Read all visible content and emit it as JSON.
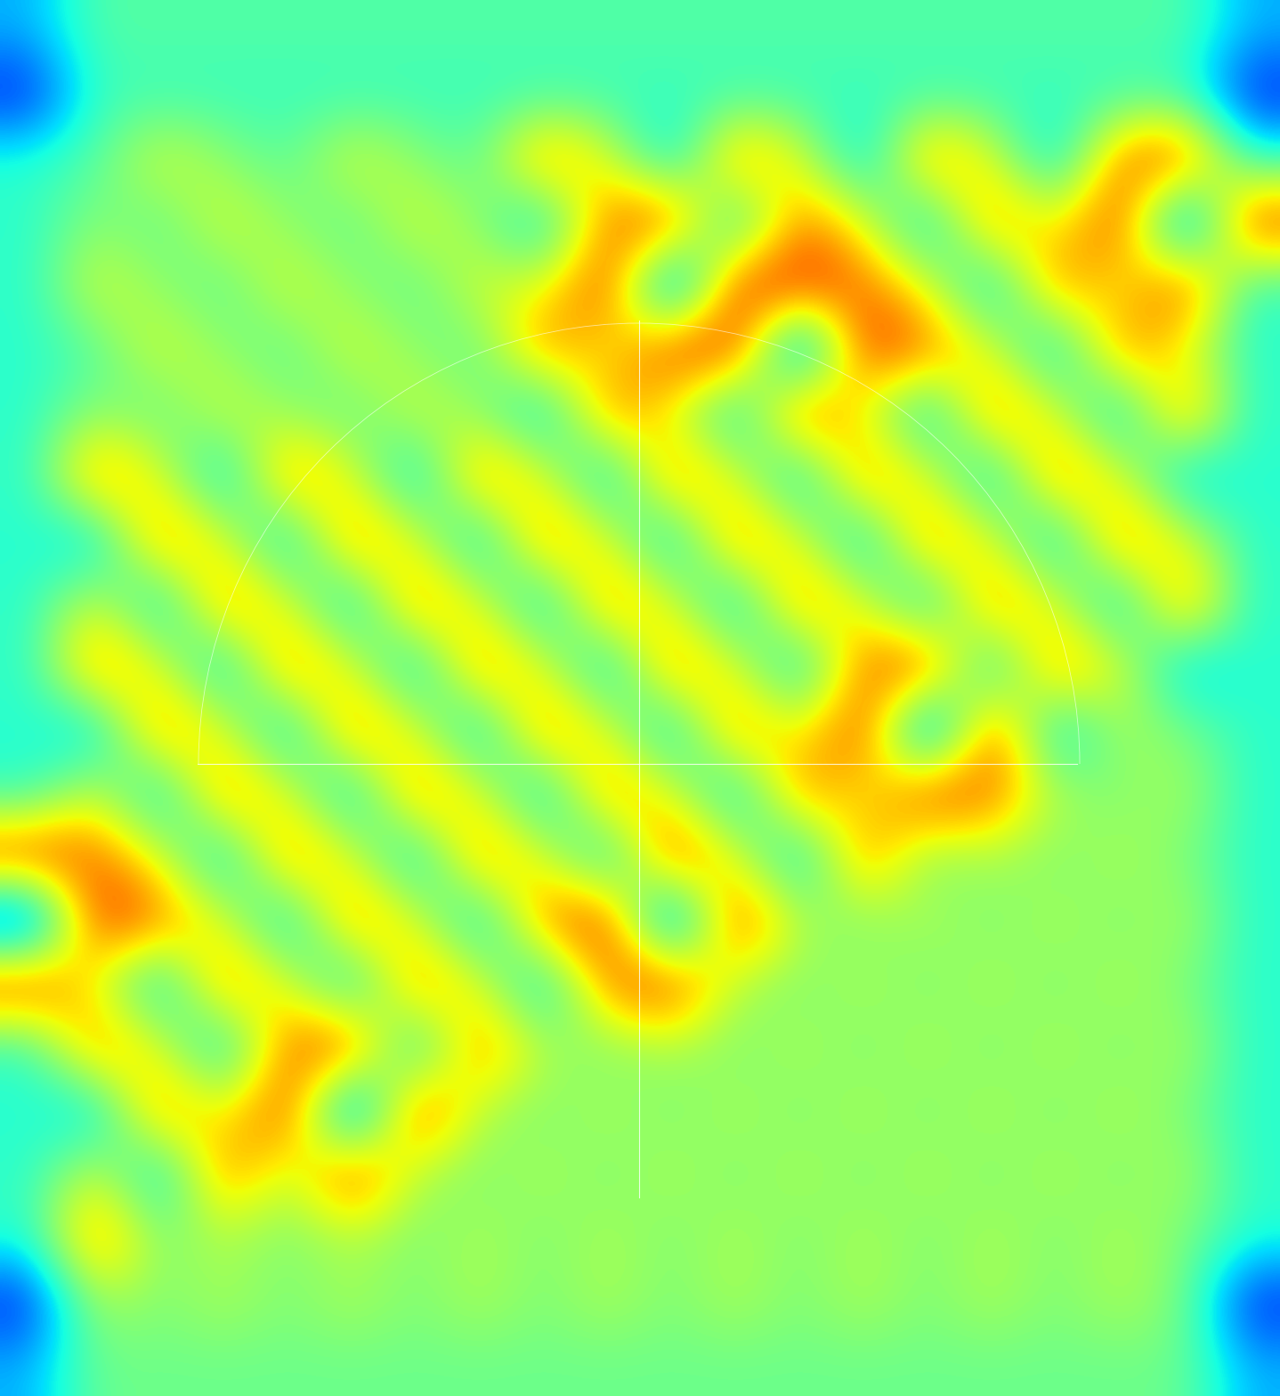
{
  "chart_data": {
    "type": "heatmap",
    "tick_labels": false,
    "grid": false,
    "value_range": [
      0,
      100
    ],
    "cells": [
      [
        30,
        45,
        45,
        45,
        45,
        45,
        45,
        45,
        45,
        45,
        45,
        45,
        45,
        45,
        45,
        45,
        45,
        45,
        45,
        30
      ],
      [
        15,
        42,
        42,
        42,
        42,
        42,
        42,
        42,
        42,
        42,
        42,
        42,
        42,
        42,
        42,
        42,
        42,
        42,
        42,
        15
      ],
      [
        40,
        45,
        62,
        52,
        45,
        62,
        52,
        45,
        80,
        62,
        30,
        80,
        62,
        30,
        80,
        62,
        30,
        80,
        88,
        40
      ],
      [
        40,
        52,
        45,
        62,
        52,
        45,
        62,
        52,
        30,
        80,
        88,
        30,
        80,
        62,
        30,
        80,
        62,
        88,
        10,
        88
      ],
      [
        40,
        62,
        52,
        45,
        62,
        52,
        45,
        62,
        62,
        88,
        10,
        88,
        88,
        80,
        62,
        30,
        80,
        62,
        88,
        40
      ],
      [
        40,
        45,
        62,
        52,
        45,
        62,
        52,
        45,
        80,
        62,
        88,
        88,
        10,
        88,
        80,
        62,
        30,
        80,
        62,
        40
      ],
      [
        40,
        52,
        45,
        62,
        52,
        45,
        62,
        52,
        30,
        80,
        62,
        30,
        88,
        62,
        30,
        80,
        62,
        30,
        80,
        40
      ],
      [
        40,
        80,
        62,
        30,
        80,
        62,
        30,
        80,
        62,
        30,
        80,
        62,
        30,
        80,
        62,
        30,
        80,
        62,
        30,
        40
      ],
      [
        40,
        30,
        80,
        62,
        30,
        80,
        62,
        30,
        80,
        62,
        30,
        80,
        62,
        30,
        80,
        62,
        30,
        80,
        62,
        40
      ],
      [
        40,
        62,
        30,
        80,
        62,
        30,
        80,
        62,
        30,
        80,
        62,
        30,
        80,
        62,
        30,
        80,
        62,
        30,
        80,
        40
      ],
      [
        40,
        80,
        62,
        30,
        80,
        62,
        30,
        80,
        62,
        30,
        80,
        62,
        30,
        80,
        88,
        30,
        80,
        62,
        30,
        40
      ],
      [
        40,
        30,
        80,
        62,
        30,
        80,
        62,
        30,
        80,
        62,
        30,
        80,
        62,
        88,
        10,
        88,
        30,
        56,
        50,
        40
      ],
      [
        40,
        62,
        30,
        80,
        62,
        30,
        80,
        62,
        30,
        80,
        62,
        30,
        80,
        62,
        88,
        80,
        56,
        50,
        56,
        40
      ],
      [
        88,
        80,
        62,
        30,
        80,
        62,
        30,
        80,
        62,
        30,
        88,
        62,
        30,
        80,
        50,
        56,
        50,
        56,
        50,
        40
      ],
      [
        10,
        88,
        80,
        62,
        30,
        80,
        62,
        30,
        80,
        88,
        10,
        88,
        56,
        50,
        56,
        50,
        56,
        50,
        56,
        40
      ],
      [
        88,
        62,
        30,
        80,
        62,
        30,
        80,
        62,
        30,
        80,
        88,
        56,
        50,
        56,
        50,
        56,
        50,
        56,
        50,
        40
      ],
      [
        40,
        80,
        62,
        30,
        80,
        88,
        30,
        80,
        56,
        50,
        56,
        50,
        56,
        50,
        56,
        50,
        56,
        50,
        56,
        40
      ],
      [
        40,
        30,
        80,
        62,
        88,
        10,
        88,
        56,
        50,
        56,
        50,
        56,
        50,
        56,
        50,
        56,
        50,
        56,
        50,
        40
      ],
      [
        40,
        62,
        30,
        80,
        56,
        88,
        56,
        50,
        56,
        50,
        56,
        50,
        56,
        50,
        56,
        50,
        56,
        50,
        56,
        40
      ],
      [
        40,
        80,
        50,
        56,
        50,
        56,
        50,
        56,
        50,
        56,
        50,
        56,
        50,
        56,
        50,
        56,
        50,
        56,
        50,
        40
      ],
      [
        15,
        56,
        50,
        56,
        50,
        56,
        50,
        56,
        50,
        56,
        50,
        56,
        50,
        56,
        50,
        56,
        50,
        56,
        50,
        15
      ],
      [
        30,
        48,
        48,
        48,
        48,
        48,
        48,
        48,
        48,
        48,
        48,
        48,
        48,
        48,
        48,
        48,
        48,
        48,
        48,
        30
      ]
    ]
  }
}
